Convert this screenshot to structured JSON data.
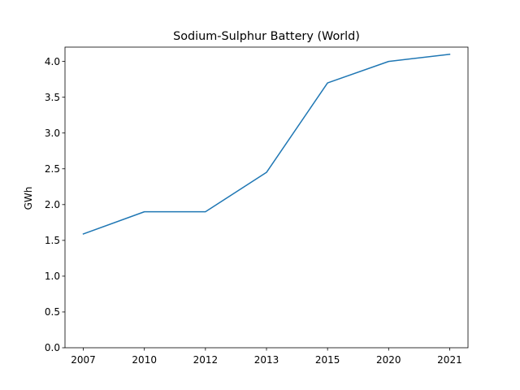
{
  "chart_data": {
    "type": "line",
    "title": "Sodium-Sulphur Battery (World)",
    "xlabel": "",
    "ylabel": "GWh",
    "categories": [
      "2007",
      "2010",
      "2012",
      "2013",
      "2015",
      "2020",
      "2021"
    ],
    "series": [
      {
        "values": [
          1.59,
          1.9,
          1.9,
          2.45,
          3.7,
          4.0,
          4.1
        ],
        "color": "#1f77b4"
      }
    ],
    "ylim": [
      0,
      4.2
    ],
    "yticks": [
      "0.0",
      "0.5",
      "1.0",
      "1.5",
      "2.0",
      "2.5",
      "3.0",
      "3.5",
      "4.0"
    ],
    "grid": false,
    "legend": "none"
  }
}
